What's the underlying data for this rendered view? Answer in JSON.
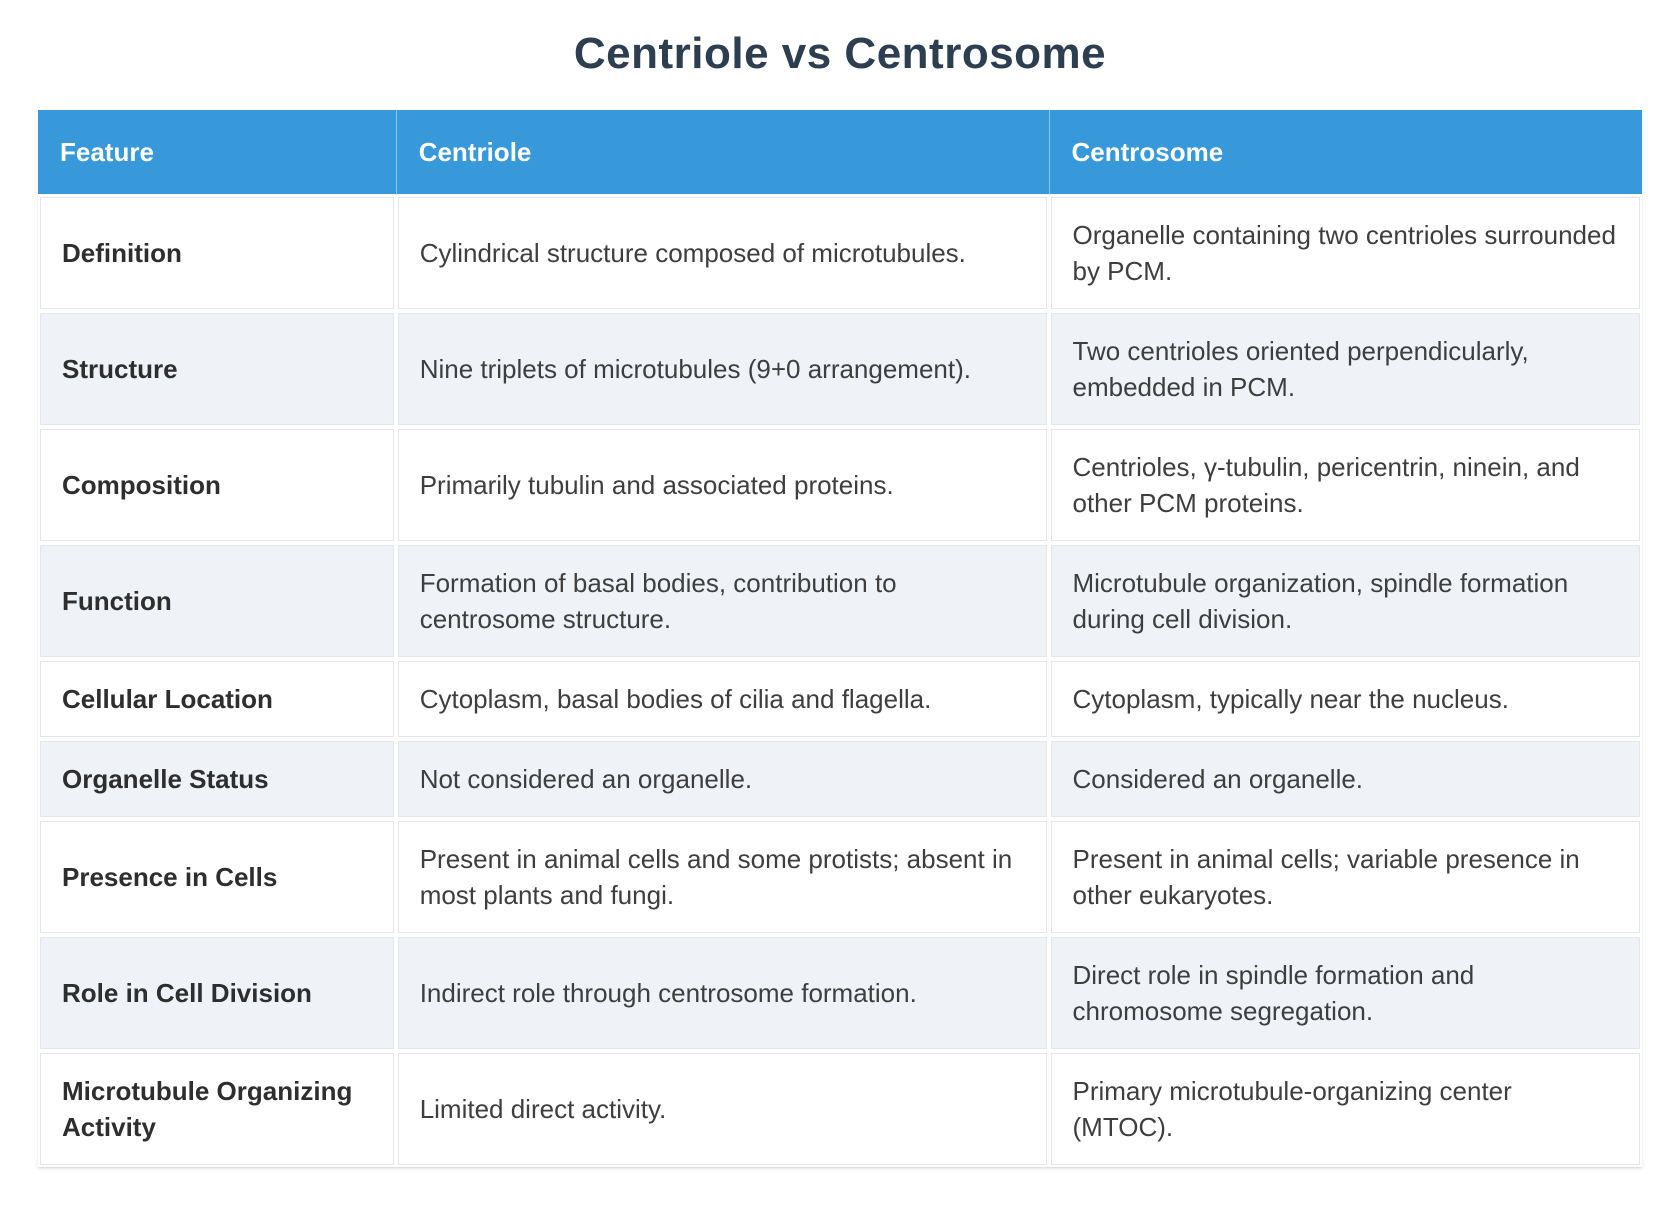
{
  "title": "Centriole vs Centrosome",
  "table": {
    "headers": [
      "Feature",
      "Centriole",
      "Centrosome"
    ],
    "rows": [
      {
        "feature": "Definition",
        "centriole": "Cylindrical structure composed of microtubules.",
        "centrosome": "Organelle containing two centrioles surrounded by PCM."
      },
      {
        "feature": "Structure",
        "centriole": "Nine triplets of microtubules (9+0 arrangement).",
        "centrosome": "Two centrioles oriented perpendicularly, embedded in PCM."
      },
      {
        "feature": "Composition",
        "centriole": "Primarily tubulin and associated proteins.",
        "centrosome": "Centrioles, γ-tubulin, pericentrin, ninein, and other PCM proteins."
      },
      {
        "feature": "Function",
        "centriole": "Formation of basal bodies, contribution to centrosome structure.",
        "centrosome": "Microtubule organization, spindle formation during cell division."
      },
      {
        "feature": "Cellular Location",
        "centriole": "Cytoplasm, basal bodies of cilia and flagella.",
        "centrosome": "Cytoplasm, typically near the nucleus."
      },
      {
        "feature": "Organelle Status",
        "centriole": "Not considered an organelle.",
        "centrosome": "Considered an organelle."
      },
      {
        "feature": "Presence in Cells",
        "centriole": "Present in animal cells and some protists; absent in most plants and fungi.",
        "centrosome": "Present in animal cells; variable presence in other eukaryotes."
      },
      {
        "feature": "Role in Cell Division",
        "centriole": "Indirect role through centrosome formation.",
        "centrosome": "Direct role in spindle formation and chromosome segregation."
      },
      {
        "feature": "Microtubule Organizing Activity",
        "centriole": "Limited direct activity.",
        "centrosome": "Primary microtubule-organizing center (MTOC)."
      }
    ]
  },
  "colors": {
    "header_bg": "#3798da",
    "header_text": "#ffffff",
    "title_text": "#2c3e50",
    "row_bg": "#ffffff",
    "row_alt_bg": "#eff3f8",
    "cell_border": "#e4e6e8",
    "body_text": "#3e3e3e",
    "feature_text": "#2e2e2e"
  }
}
